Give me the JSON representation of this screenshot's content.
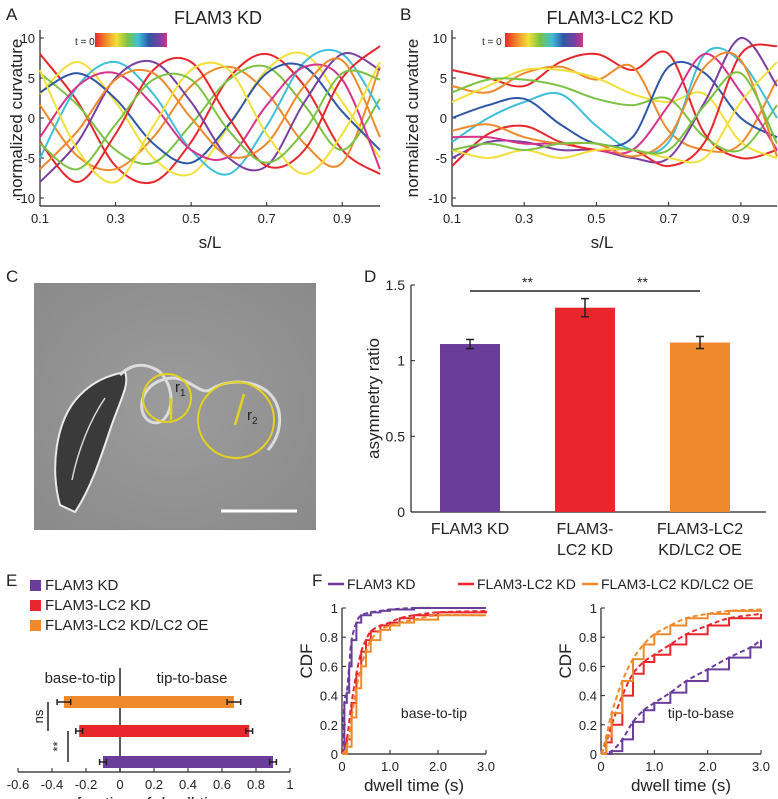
{
  "panels": {
    "A": {
      "letter": "A",
      "title": "FLAM3 KD",
      "ylabel": "normalized curvature",
      "xlabel": "s/L",
      "legend": "t = 0",
      "xticks": [
        "0.1",
        "0.3",
        "0.5",
        "0.7",
        "0.9"
      ],
      "yticks": [
        "10",
        "5",
        "0",
        "-5",
        "-10"
      ]
    },
    "B": {
      "letter": "B",
      "title": "FLAM3-LC2 KD",
      "ylabel": "normalized curvature",
      "xlabel": "s/L",
      "legend": "t = 0",
      "xticks": [
        "0.1",
        "0.3",
        "0.5",
        "0.7",
        "0.9"
      ],
      "yticks": [
        "10",
        "5",
        "0",
        "-5",
        "-10"
      ]
    },
    "C": {
      "letter": "C",
      "r1_label": "r",
      "r1_sub": "1",
      "r2_label": "r",
      "r2_sub": "2"
    },
    "D": {
      "letter": "D",
      "sig1": "**",
      "sig2": "**"
    },
    "E": {
      "letter": "E",
      "legend": [
        "FLAM3 KD",
        "FLAM3-LC2 KD",
        "FLAM3-LC2 KD/LC2 OE"
      ],
      "left_label": "base-to-tip",
      "right_label": "tip-to-base",
      "sig_ns": "ns",
      "sig_star": "**"
    },
    "F": {
      "letter": "F",
      "legend": [
        "FLAM3 KD",
        "FLAM3-LC2 KD",
        "FLAM3-LC2 KD/LC2 OE"
      ],
      "left_label": "base-to-tip",
      "right_label": "tip-to-base"
    }
  },
  "colors": {
    "purple": "#6a3d9a",
    "red": "#e8262c",
    "orange": "#ef8a2c"
  },
  "chart_data": [
    {
      "id": "A",
      "type": "line",
      "title": "FLAM3 KD",
      "xlabel": "s/L",
      "ylabel": "normalized curvature",
      "xlim": [
        0.1,
        1.0
      ],
      "ylim": [
        -11,
        11
      ],
      "note": "Multiple curvature waveforms over time (t=0 red → later blue/purple)",
      "series": [
        {
          "name": "t1",
          "x": [
            0.1,
            0.2,
            0.3,
            0.4,
            0.5,
            0.6,
            0.7,
            0.8,
            0.9,
            1.0
          ],
          "y": [
            8,
            2,
            -6,
            -8,
            -3,
            5,
            8,
            4,
            -4,
            -7
          ]
        },
        {
          "name": "t2",
          "x": [
            0.1,
            0.2,
            0.3,
            0.4,
            0.5,
            0.6,
            0.7,
            0.8,
            0.9,
            1.0
          ],
          "y": [
            3,
            7,
            2,
            -5,
            -7,
            -1,
            6,
            8,
            2,
            -5
          ]
        },
        {
          "name": "t3",
          "x": [
            0.1,
            0.2,
            0.3,
            0.4,
            0.5,
            0.6,
            0.7,
            0.8,
            0.9,
            1.0
          ],
          "y": [
            -5,
            4,
            7,
            3,
            -4,
            -7,
            -1,
            7,
            8,
            1
          ]
        },
        {
          "name": "t4",
          "x": [
            0.1,
            0.2,
            0.3,
            0.4,
            0.5,
            0.6,
            0.7,
            0.8,
            0.9,
            1.0
          ],
          "y": [
            -8,
            -3,
            5,
            7,
            2,
            -5,
            -6,
            2,
            8,
            6
          ]
        },
        {
          "name": "t5",
          "x": [
            0.1,
            0.2,
            0.3,
            0.4,
            0.5,
            0.6,
            0.7,
            0.8,
            0.9,
            1.0
          ],
          "y": [
            -3,
            -8,
            -2,
            6,
            7,
            0,
            -6,
            -4,
            5,
            9
          ]
        },
        {
          "name": "t6",
          "x": [
            0.1,
            0.2,
            0.3,
            0.4,
            0.5,
            0.6,
            0.7,
            0.8,
            0.9,
            1.0
          ],
          "y": [
            6,
            -4,
            -8,
            -1,
            6,
            6,
            -2,
            -7,
            -2,
            7
          ]
        }
      ]
    },
    {
      "id": "B",
      "type": "line",
      "title": "FLAM3-LC2 KD",
      "xlabel": "s/L",
      "ylabel": "normalized curvature",
      "xlim": [
        0.1,
        1.0
      ],
      "ylim": [
        -11,
        11
      ],
      "series": [
        {
          "name": "t1",
          "x": [
            0.1,
            0.2,
            0.3,
            0.4,
            0.5,
            0.6,
            0.7,
            0.8,
            0.9,
            1.0
          ],
          "y": [
            6,
            5,
            4,
            7,
            8,
            6,
            8,
            -2,
            -5,
            -4
          ]
        },
        {
          "name": "t2",
          "x": [
            0.1,
            0.2,
            0.3,
            0.4,
            0.5,
            0.6,
            0.7,
            0.8,
            0.9,
            1.0
          ],
          "y": [
            2,
            4,
            6,
            6,
            5,
            3,
            2,
            3,
            -3,
            -5
          ]
        },
        {
          "name": "t3",
          "x": [
            0.1,
            0.2,
            0.3,
            0.4,
            0.5,
            0.6,
            0.7,
            0.8,
            0.9,
            1.0
          ],
          "y": [
            -3,
            0,
            2,
            3,
            -1,
            -4,
            -3,
            8,
            7,
            0
          ]
        },
        {
          "name": "t4",
          "x": [
            0.1,
            0.2,
            0.3,
            0.4,
            0.5,
            0.6,
            0.7,
            0.8,
            0.9,
            1.0
          ],
          "y": [
            -5,
            -3,
            -3,
            -4,
            -4,
            -5,
            -5,
            2,
            10,
            4
          ]
        },
        {
          "name": "t5",
          "x": [
            0.1,
            0.2,
            0.3,
            0.4,
            0.5,
            0.6,
            0.7,
            0.8,
            0.9,
            1.0
          ],
          "y": [
            -6,
            -2,
            -1,
            -3,
            -4,
            -4,
            -6,
            -3,
            8,
            9
          ]
        },
        {
          "name": "t6",
          "x": [
            0.1,
            0.2,
            0.3,
            0.4,
            0.5,
            0.6,
            0.7,
            0.8,
            0.9,
            1.0
          ],
          "y": [
            -4,
            -5,
            -4,
            -5,
            -4,
            -4,
            -5,
            -5,
            2,
            7
          ]
        }
      ]
    },
    {
      "id": "D",
      "type": "bar",
      "ylabel": "asymmetry ratio",
      "categories": [
        "FLAM3 KD",
        "FLAM3-\nLC2 KD",
        "FLAM3-LC2\nKD/LC2 OE"
      ],
      "values": [
        1.11,
        1.35,
        1.12
      ],
      "errors": [
        0.03,
        0.06,
        0.04
      ],
      "ylim": [
        0,
        1.5
      ],
      "yticks": [
        0,
        0.5,
        1,
        1.5
      ],
      "ytick_labels": [
        "0",
        "0.5",
        "1",
        "1.5"
      ],
      "colors": [
        "#6a3d9a",
        "#e8262c",
        "#ef8a2c"
      ]
    },
    {
      "id": "E",
      "type": "bar",
      "orientation": "horizontal",
      "xlabel": "fraction of dwell time",
      "xlim": [
        -0.6,
        1.0
      ],
      "xticks": [
        -0.6,
        -0.4,
        -0.2,
        0,
        0.2,
        0.4,
        0.6,
        0.8,
        1.0
      ],
      "xtick_labels": [
        "-0.6",
        "-0.4",
        "-0.2",
        "0",
        "0.2",
        "0.4",
        "0.6",
        "0.8",
        "1"
      ],
      "series": [
        {
          "name": "FLAM3-LC2 KD/LC2 OE",
          "base_to_tip": -0.33,
          "tip_to_base": 0.67,
          "err": 0.04,
          "color": "#ef8a2c"
        },
        {
          "name": "FLAM3-LC2 KD",
          "base_to_tip": -0.24,
          "tip_to_base": 0.76,
          "err": 0.02,
          "color": "#e8262c"
        },
        {
          "name": "FLAM3 KD",
          "base_to_tip": -0.1,
          "tip_to_base": 0.9,
          "err": 0.02,
          "color": "#6a3d9a"
        }
      ]
    },
    {
      "id": "F-left",
      "type": "line",
      "title": "base-to-tip",
      "xlabel": "dwell time (s)",
      "ylabel": "CDF",
      "xlim": [
        0,
        3.0
      ],
      "ylim": [
        0,
        1
      ],
      "xticks": [
        0,
        1.0,
        2.0,
        3.0
      ],
      "xtick_labels": [
        "0",
        "1.0",
        "2.0",
        "3.0"
      ],
      "yticks": [
        0,
        0.2,
        0.4,
        0.6,
        0.8,
        1
      ],
      "ytick_labels": [
        "0",
        "0.2",
        "0.4",
        "0.6",
        "0.8",
        "1"
      ],
      "series": [
        {
          "name": "FLAM3 KD",
          "color": "#6a3d9a",
          "x": [
            0,
            0.05,
            0.1,
            0.15,
            0.2,
            0.3,
            0.4,
            0.6,
            0.8,
            1.0,
            1.5,
            2.0,
            3.0
          ],
          "y": [
            0,
            0.35,
            0.42,
            0.6,
            0.78,
            0.9,
            0.95,
            0.97,
            0.98,
            0.99,
            1,
            1,
            1
          ]
        },
        {
          "name": "FLAM3-LC2 KD",
          "color": "#e8262c",
          "x": [
            0,
            0.1,
            0.2,
            0.3,
            0.4,
            0.5,
            0.6,
            0.8,
            1.0,
            1.2,
            1.5,
            2.0,
            3.0
          ],
          "y": [
            0,
            0.1,
            0.35,
            0.55,
            0.7,
            0.78,
            0.84,
            0.88,
            0.9,
            0.93,
            0.95,
            0.97,
            0.98
          ]
        },
        {
          "name": "FLAM3-LC2 KD/LC2 OE",
          "color": "#ef8a2c",
          "x": [
            0,
            0.1,
            0.2,
            0.3,
            0.4,
            0.5,
            0.6,
            0.8,
            1.0,
            1.2,
            1.5,
            2.0,
            3.0
          ],
          "y": [
            0,
            0.05,
            0.25,
            0.45,
            0.6,
            0.7,
            0.78,
            0.85,
            0.88,
            0.9,
            0.92,
            0.95,
            0.95
          ]
        }
      ]
    },
    {
      "id": "F-right",
      "type": "line",
      "title": "tip-to-base",
      "xlabel": "dwell time (s)",
      "ylabel": "CDF",
      "xlim": [
        0,
        3.0
      ],
      "ylim": [
        0,
        1
      ],
      "xticks": [
        0,
        1.0,
        2.0,
        3.0
      ],
      "xtick_labels": [
        "0",
        "1.0",
        "2.0",
        "3.0"
      ],
      "yticks": [
        0,
        0.2,
        0.4,
        0.6,
        0.8,
        1
      ],
      "ytick_labels": [
        "0",
        "0.2",
        "0.4",
        "0.6",
        "0.8",
        "1"
      ],
      "series": [
        {
          "name": "FLAM3 KD",
          "color": "#6a3d9a",
          "x": [
            0,
            0.2,
            0.4,
            0.6,
            0.8,
            1.0,
            1.3,
            1.6,
            2.0,
            2.4,
            2.8,
            3.0
          ],
          "y": [
            0,
            0.02,
            0.1,
            0.22,
            0.3,
            0.35,
            0.42,
            0.5,
            0.58,
            0.66,
            0.73,
            0.78
          ]
        },
        {
          "name": "FLAM3-LC2 KD",
          "color": "#e8262c",
          "x": [
            0,
            0.1,
            0.2,
            0.4,
            0.6,
            0.8,
            1.0,
            1.3,
            1.6,
            2.0,
            2.4,
            3.0
          ],
          "y": [
            0,
            0.08,
            0.2,
            0.4,
            0.55,
            0.63,
            0.68,
            0.75,
            0.82,
            0.88,
            0.93,
            0.96
          ]
        },
        {
          "name": "FLAM3-LC2 KD/LC2 OE",
          "color": "#ef8a2c",
          "x": [
            0,
            0.1,
            0.2,
            0.4,
            0.6,
            0.8,
            1.0,
            1.3,
            1.6,
            2.0,
            2.4,
            3.0
          ],
          "y": [
            0,
            0.12,
            0.28,
            0.5,
            0.65,
            0.75,
            0.82,
            0.88,
            0.93,
            0.96,
            0.98,
            0.99
          ]
        }
      ]
    }
  ]
}
